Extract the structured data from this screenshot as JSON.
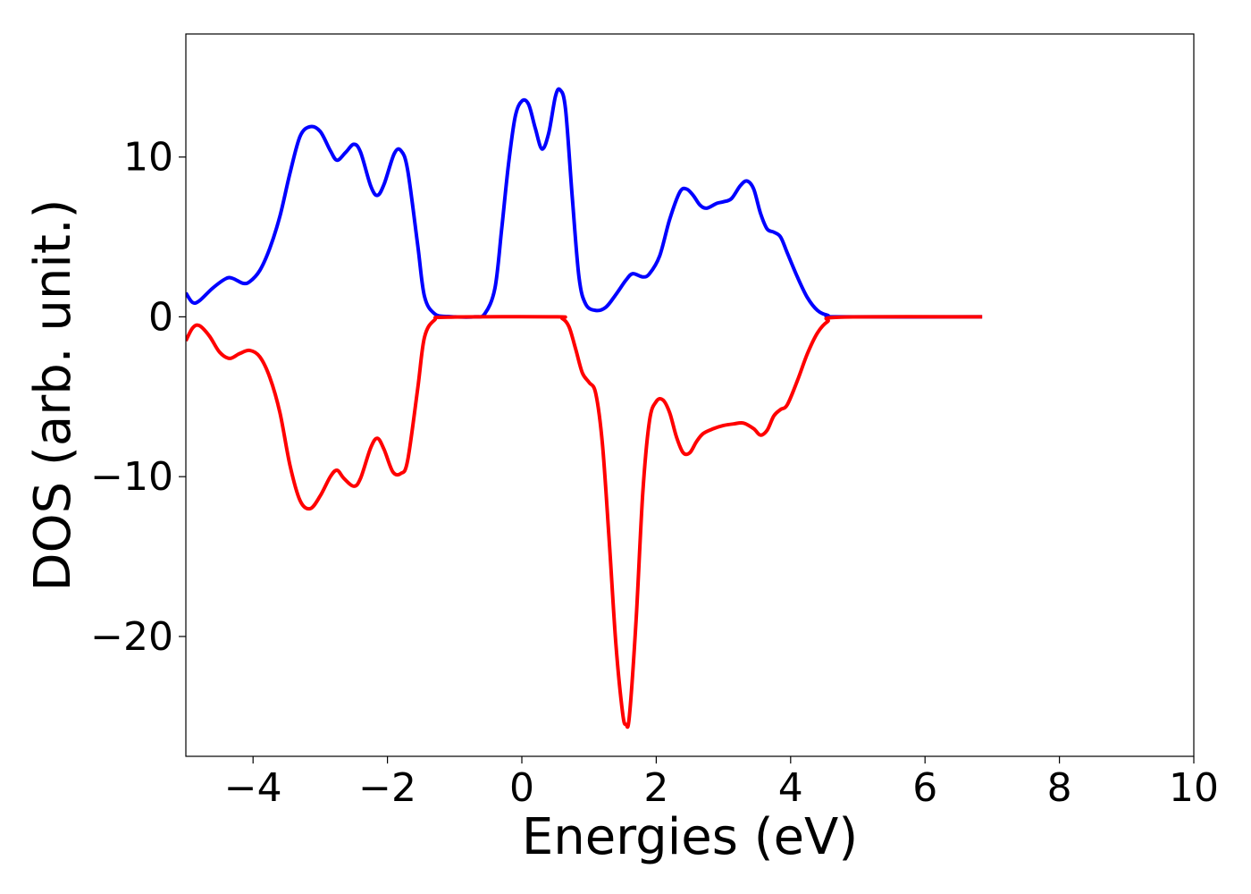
{
  "chart_data": {
    "type": "line",
    "title": "",
    "xlabel": "Energies (eV)",
    "ylabel": "DOS (arb. unit.)",
    "xlim": [
      -5,
      10
    ],
    "ylim": [
      -27.5,
      17.7
    ],
    "grid": false,
    "legend": "none",
    "x_ticks": [
      -4,
      -2,
      0,
      2,
      4,
      6,
      8,
      10
    ],
    "x_tick_labels": [
      "−4",
      "−2",
      "0",
      "2",
      "4",
      "6",
      "8",
      "10"
    ],
    "y_ticks": [
      10,
      0,
      -10,
      -20
    ],
    "y_tick_labels": [
      "10",
      "0",
      "−10",
      "−20"
    ],
    "series": [
      {
        "color": "#0000ff",
        "points": [
          [
            -5.0,
            1.5
          ],
          [
            -4.9,
            0.9
          ],
          [
            -4.8,
            1.0
          ],
          [
            -4.6,
            1.8
          ],
          [
            -4.4,
            2.4
          ],
          [
            -4.3,
            2.4
          ],
          [
            -4.15,
            2.1
          ],
          [
            -4.05,
            2.2
          ],
          [
            -3.9,
            2.9
          ],
          [
            -3.75,
            4.3
          ],
          [
            -3.6,
            6.3
          ],
          [
            -3.45,
            9.0
          ],
          [
            -3.3,
            11.3
          ],
          [
            -3.15,
            11.9
          ],
          [
            -3.0,
            11.6
          ],
          [
            -2.85,
            10.4
          ],
          [
            -2.75,
            9.8
          ],
          [
            -2.62,
            10.3
          ],
          [
            -2.5,
            10.8
          ],
          [
            -2.4,
            10.3
          ],
          [
            -2.25,
            8.2
          ],
          [
            -2.15,
            7.6
          ],
          [
            -2.05,
            8.3
          ],
          [
            -1.9,
            10.2
          ],
          [
            -1.8,
            10.4
          ],
          [
            -1.7,
            9.2
          ],
          [
            -1.55,
            4.5
          ],
          [
            -1.45,
            1.3
          ],
          [
            -1.3,
            0.2
          ],
          [
            -1.1,
            0.02
          ],
          [
            -0.7,
            0.0
          ],
          [
            -0.55,
            0.2
          ],
          [
            -0.4,
            1.8
          ],
          [
            -0.3,
            5.5
          ],
          [
            -0.2,
            9.5
          ],
          [
            -0.1,
            12.5
          ],
          [
            0.0,
            13.5
          ],
          [
            0.1,
            13.3
          ],
          [
            0.2,
            11.8
          ],
          [
            0.3,
            10.5
          ],
          [
            0.4,
            11.5
          ],
          [
            0.5,
            13.8
          ],
          [
            0.57,
            14.2
          ],
          [
            0.65,
            13.0
          ],
          [
            0.75,
            7.5
          ],
          [
            0.85,
            2.5
          ],
          [
            0.95,
            0.8
          ],
          [
            1.1,
            0.4
          ],
          [
            1.25,
            0.6
          ],
          [
            1.4,
            1.4
          ],
          [
            1.55,
            2.3
          ],
          [
            1.65,
            2.7
          ],
          [
            1.8,
            2.5
          ],
          [
            1.9,
            2.7
          ],
          [
            2.05,
            3.8
          ],
          [
            2.2,
            6.1
          ],
          [
            2.35,
            7.8
          ],
          [
            2.45,
            8.0
          ],
          [
            2.55,
            7.6
          ],
          [
            2.65,
            7.0
          ],
          [
            2.75,
            6.8
          ],
          [
            2.9,
            7.1
          ],
          [
            3.0,
            7.2
          ],
          [
            3.12,
            7.4
          ],
          [
            3.25,
            8.2
          ],
          [
            3.35,
            8.5
          ],
          [
            3.45,
            8.0
          ],
          [
            3.55,
            6.5
          ],
          [
            3.65,
            5.5
          ],
          [
            3.75,
            5.3
          ],
          [
            3.85,
            5.0
          ],
          [
            3.95,
            4.0
          ],
          [
            4.1,
            2.5
          ],
          [
            4.25,
            1.2
          ],
          [
            4.4,
            0.4
          ],
          [
            4.55,
            0.1
          ],
          [
            4.75,
            0.0
          ],
          [
            6.85,
            0.0
          ]
        ]
      },
      {
        "color": "#ff0000",
        "points": [
          [
            -5.0,
            -1.5
          ],
          [
            -4.9,
            -0.7
          ],
          [
            -4.8,
            -0.55
          ],
          [
            -4.65,
            -1.2
          ],
          [
            -4.5,
            -2.2
          ],
          [
            -4.35,
            -2.6
          ],
          [
            -4.2,
            -2.3
          ],
          [
            -4.05,
            -2.1
          ],
          [
            -3.9,
            -2.5
          ],
          [
            -3.75,
            -3.8
          ],
          [
            -3.6,
            -6.0
          ],
          [
            -3.45,
            -9.3
          ],
          [
            -3.3,
            -11.5
          ],
          [
            -3.15,
            -12.0
          ],
          [
            -3.0,
            -11.2
          ],
          [
            -2.85,
            -10.0
          ],
          [
            -2.75,
            -9.6
          ],
          [
            -2.65,
            -10.1
          ],
          [
            -2.5,
            -10.6
          ],
          [
            -2.4,
            -10.1
          ],
          [
            -2.25,
            -8.2
          ],
          [
            -2.15,
            -7.6
          ],
          [
            -2.05,
            -8.3
          ],
          [
            -1.92,
            -9.7
          ],
          [
            -1.8,
            -9.8
          ],
          [
            -1.7,
            -9.0
          ],
          [
            -1.55,
            -4.5
          ],
          [
            -1.45,
            -1.3
          ],
          [
            -1.3,
            -0.2
          ],
          [
            -1.1,
            -0.02
          ],
          [
            0.5,
            0.0
          ],
          [
            0.6,
            -0.1
          ],
          [
            0.7,
            -0.6
          ],
          [
            0.8,
            -2.0
          ],
          [
            0.9,
            -3.5
          ],
          [
            1.0,
            -4.1
          ],
          [
            1.1,
            -4.8
          ],
          [
            1.2,
            -8.0
          ],
          [
            1.3,
            -14.0
          ],
          [
            1.4,
            -20.5
          ],
          [
            1.5,
            -24.8
          ],
          [
            1.55,
            -25.5
          ],
          [
            1.6,
            -25.0
          ],
          [
            1.7,
            -19.0
          ],
          [
            1.8,
            -11.0
          ],
          [
            1.9,
            -6.5
          ],
          [
            2.0,
            -5.3
          ],
          [
            2.1,
            -5.2
          ],
          [
            2.2,
            -6.0
          ],
          [
            2.3,
            -7.5
          ],
          [
            2.4,
            -8.5
          ],
          [
            2.5,
            -8.5
          ],
          [
            2.6,
            -7.8
          ],
          [
            2.7,
            -7.3
          ],
          [
            2.85,
            -7.0
          ],
          [
            3.0,
            -6.8
          ],
          [
            3.15,
            -6.7
          ],
          [
            3.3,
            -6.65
          ],
          [
            3.45,
            -7.0
          ],
          [
            3.55,
            -7.4
          ],
          [
            3.65,
            -7.1
          ],
          [
            3.75,
            -6.2
          ],
          [
            3.85,
            -5.8
          ],
          [
            3.95,
            -5.5
          ],
          [
            4.1,
            -4.0
          ],
          [
            4.25,
            -2.3
          ],
          [
            4.4,
            -1.0
          ],
          [
            4.55,
            -0.3
          ],
          [
            4.75,
            -0.02
          ],
          [
            6.85,
            0.0
          ]
        ]
      }
    ]
  }
}
